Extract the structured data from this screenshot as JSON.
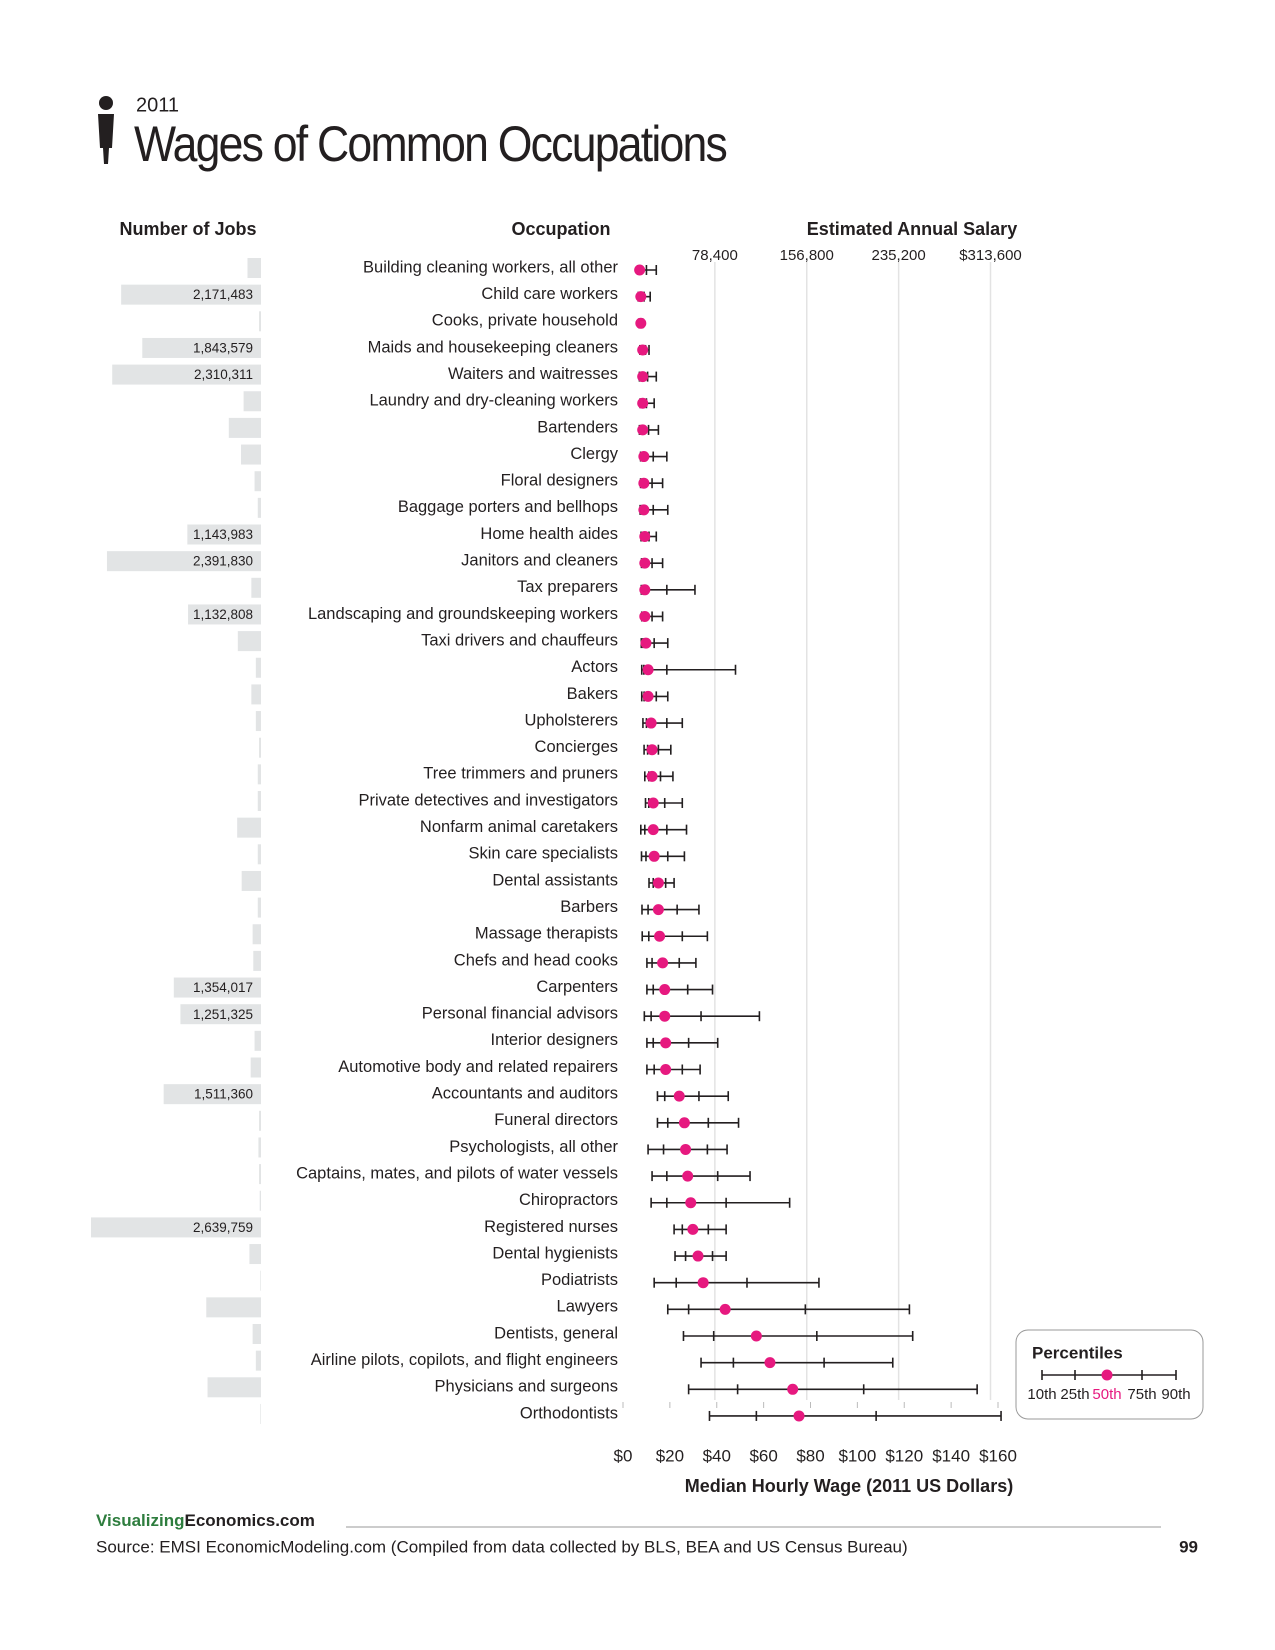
{
  "chart_data": {
    "type": "range_dot",
    "kicker": "2011",
    "title": "Wages of Common Occupations",
    "jobs_header": "Number of Jobs",
    "categories_header": "Occupation",
    "x2label": "Estimated Annual Salary",
    "xlabel": "Median Hourly Wage (2011 US Dollars)",
    "categories": [
      "Building cleaning workers, all other",
      "Child care workers",
      "Cooks, private household",
      "Maids and housekeeping cleaners",
      "Waiters and waitresses",
      "Laundry and dry-cleaning workers",
      "Bartenders",
      "Clergy",
      "Floral designers",
      "Baggage porters and bellhops",
      "Home health aides",
      "Janitors and cleaners",
      "Tax preparers",
      "Landscaping and groundskeeping workers",
      "Taxi drivers and chauffeurs",
      "Actors",
      "Bakers",
      "Upholsterers",
      "Concierges",
      "Tree trimmers and pruners",
      "Private detectives and investigators",
      "Nonfarm animal caretakers",
      "Skin care specialists",
      "Dental assistants",
      "Barbers",
      "Massage therapists",
      "Chefs and head cooks",
      "Carpenters",
      "Personal financial advisors",
      "Interior designers",
      "Automotive body and related repairers",
      "Accountants and auditors",
      "Funeral directors",
      "Psychologists, all other",
      "Captains, mates, and pilots of water vessels",
      "Chiropractors",
      "Registered nurses",
      "Dental hygienists",
      "Podiatrists",
      "Lawyers",
      "Dentists, general",
      "Airline pilots, copilots, and flight engineers",
      "Physicians and surgeons",
      "Orthodontists"
    ],
    "jobs": {
      "color": "#e2e4e5",
      "values": [
        210000,
        2171483,
        30000,
        1843579,
        2310311,
        270000,
        500000,
        310000,
        100000,
        50000,
        1143983,
        2391830,
        150000,
        1132808,
        360000,
        80000,
        150000,
        80000,
        30000,
        50000,
        50000,
        370000,
        50000,
        300000,
        50000,
        130000,
        120000,
        1354017,
        1251325,
        100000,
        160000,
        1511360,
        30000,
        40000,
        30000,
        20000,
        2639759,
        180000,
        10000,
        850000,
        130000,
        80000,
        830000,
        10000
      ],
      "value_labels": [
        null,
        "2,171,483",
        null,
        "1,843,579",
        "2,310,311",
        null,
        null,
        null,
        null,
        null,
        "1,143,983",
        "2,391,830",
        null,
        "1,132,808",
        null,
        null,
        null,
        null,
        null,
        null,
        null,
        null,
        null,
        null,
        null,
        null,
        null,
        "1,354,017",
        "1,251,325",
        null,
        null,
        "1,511,360",
        null,
        null,
        null,
        null,
        "2,639,759",
        null,
        null,
        null,
        null,
        null,
        null,
        null
      ]
    },
    "legend_title": "Percentiles",
    "series": [
      {
        "name": "10th",
        "color": "#231f20",
        "values": [
          6.3,
          6.5,
          6.8,
          7.2,
          7.0,
          7.3,
          7.0,
          7.5,
          7.5,
          7.3,
          7.7,
          7.9,
          7.8,
          8.0,
          7.8,
          8.0,
          8.0,
          8.5,
          9.0,
          9.3,
          9.6,
          7.6,
          7.9,
          11.1,
          8.1,
          8.2,
          10.2,
          10.2,
          9.1,
          10.2,
          10.2,
          14.7,
          14.7,
          10.7,
          12.4,
          12.0,
          21.8,
          22.2,
          13.3,
          19.1,
          25.8,
          33.3,
          28.0,
          36.9
        ]
      },
      {
        "name": "25th",
        "color": "#231f20",
        "values": [
          6.9,
          7.2,
          7.2,
          7.8,
          7.6,
          7.9,
          7.6,
          8.2,
          8.2,
          8.0,
          8.5,
          8.6,
          8.5,
          8.8,
          8.5,
          8.9,
          9.0,
          10.0,
          10.5,
          11.0,
          11.0,
          9.3,
          9.8,
          12.9,
          10.7,
          11.0,
          12.4,
          12.9,
          12.0,
          12.9,
          13.3,
          17.8,
          19.1,
          17.3,
          18.7,
          18.7,
          25.3,
          26.7,
          22.7,
          28.0,
          38.7,
          47.1,
          48.9,
          56.9
        ]
      },
      {
        "name": "50th",
        "color": "#e6197f",
        "values": [
          7.1,
          7.6,
          7.6,
          8.4,
          8.4,
          8.4,
          8.4,
          8.9,
          8.9,
          8.9,
          9.3,
          9.3,
          9.3,
          9.3,
          9.8,
          10.7,
          10.7,
          12.0,
          12.4,
          12.4,
          12.9,
          12.9,
          13.3,
          15.1,
          15.1,
          15.6,
          16.9,
          17.8,
          17.8,
          18.2,
          18.2,
          24.0,
          26.2,
          26.7,
          27.6,
          28.9,
          29.8,
          32.0,
          34.2,
          43.6,
          56.9,
          62.7,
          72.4,
          75.1
        ]
      },
      {
        "name": "75th",
        "color": "#231f20",
        "values": [
          10.0,
          9.0,
          8.0,
          9.6,
          10.5,
          10.0,
          10.9,
          12.9,
          12.4,
          12.9,
          11.1,
          12.4,
          18.7,
          12.4,
          13.3,
          18.7,
          14.2,
          18.7,
          15.1,
          16.0,
          17.8,
          18.7,
          19.1,
          18.2,
          23.1,
          25.3,
          24.0,
          27.6,
          33.3,
          28.0,
          25.3,
          32.4,
          36.4,
          36.0,
          40.4,
          44.0,
          36.4,
          38.2,
          52.9,
          77.8,
          82.7,
          85.8,
          102.7,
          108.0
        ]
      },
      {
        "name": "90th",
        "color": "#231f20",
        "values": [
          14.2,
          11.6,
          8.4,
          11.1,
          14.2,
          13.3,
          15.1,
          18.7,
          16.9,
          19.1,
          14.2,
          16.9,
          30.7,
          16.9,
          19.1,
          48.0,
          19.1,
          25.3,
          20.4,
          21.3,
          25.3,
          27.1,
          26.2,
          21.8,
          32.4,
          36.0,
          31.1,
          38.2,
          58.2,
          40.4,
          32.9,
          44.9,
          49.3,
          44.4,
          54.2,
          71.1,
          44.0,
          44.0,
          83.6,
          122.2,
          123.6,
          115.1,
          151.1,
          161.3
        ]
      }
    ],
    "xlim": [
      0,
      160
    ],
    "xticks": [
      {
        "value": 0,
        "label": "$0"
      },
      {
        "value": 20,
        "label": "$20"
      },
      {
        "value": 40,
        "label": "$40"
      },
      {
        "value": 60,
        "label": "$60"
      },
      {
        "value": 80,
        "label": "$80"
      },
      {
        "value": 100,
        "label": "$100"
      },
      {
        "value": 120,
        "label": "$120"
      },
      {
        "value": 140,
        "label": "$140"
      },
      {
        "value": 160,
        "label": "$160"
      }
    ],
    "x2lim": [
      0,
      320000
    ],
    "x2ticks": [
      {
        "value": 78400,
        "label": "78,400"
      },
      {
        "value": 156800,
        "label": "156,800"
      },
      {
        "value": 235200,
        "label": "235,200"
      },
      {
        "value": 313600,
        "label": "$313,600"
      }
    ],
    "grid": true,
    "footer": {
      "brand_a": "Visualizing",
      "brand_b": "Economics.com",
      "source": "Source: EMSI EconomicModeling.com (Compiled from data collected by BLS, BEA and US Census Bureau)",
      "page": 99
    }
  }
}
